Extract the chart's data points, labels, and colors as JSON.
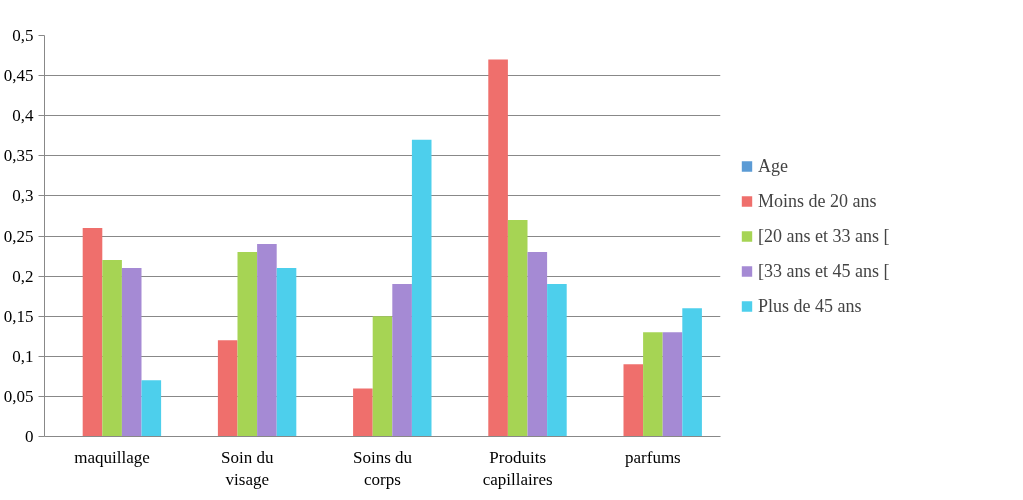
{
  "chart_data": {
    "type": "bar",
    "categories": [
      "maquillage",
      "Soin du visage",
      "Soins du corps",
      "Produits capillaires",
      "parfums"
    ],
    "series": [
      {
        "name": "Age",
        "color": "#5b9bd5",
        "values": [
          null,
          null,
          null,
          null,
          null
        ]
      },
      {
        "name": "Moins de 20 ans",
        "color": "#ef6f6c",
        "values": [
          0.26,
          0.12,
          0.06,
          0.47,
          0.09
        ]
      },
      {
        "name": "[20 ans et 33 ans [",
        "color": "#a6d454",
        "values": [
          0.22,
          0.23,
          0.15,
          0.27,
          0.13
        ]
      },
      {
        "name": "[33 ans et 45 ans [",
        "color": "#a58ad4",
        "values": [
          0.21,
          0.24,
          0.19,
          0.23,
          0.13
        ]
      },
      {
        "name": "Plus de 45 ans",
        "color": "#4dcfec",
        "values": [
          0.07,
          0.21,
          0.37,
          0.19,
          0.16
        ]
      }
    ],
    "ylim": [
      0,
      0.5
    ],
    "yticks": [
      {
        "value": 0,
        "label": "0"
      },
      {
        "value": 0.05,
        "label": "0,05"
      },
      {
        "value": 0.1,
        "label": "0,1"
      },
      {
        "value": 0.15,
        "label": "0,15"
      },
      {
        "value": 0.2,
        "label": "0,2"
      },
      {
        "value": 0.25,
        "label": "0,25"
      },
      {
        "value": 0.3,
        "label": "0,3"
      },
      {
        "value": 0.35,
        "label": "0,35"
      },
      {
        "value": 0.4,
        "label": "0,4"
      },
      {
        "value": 0.45,
        "label": "0,45"
      },
      {
        "value": 0.5,
        "label": "0,5"
      }
    ],
    "grid": "y",
    "legend": "right"
  }
}
